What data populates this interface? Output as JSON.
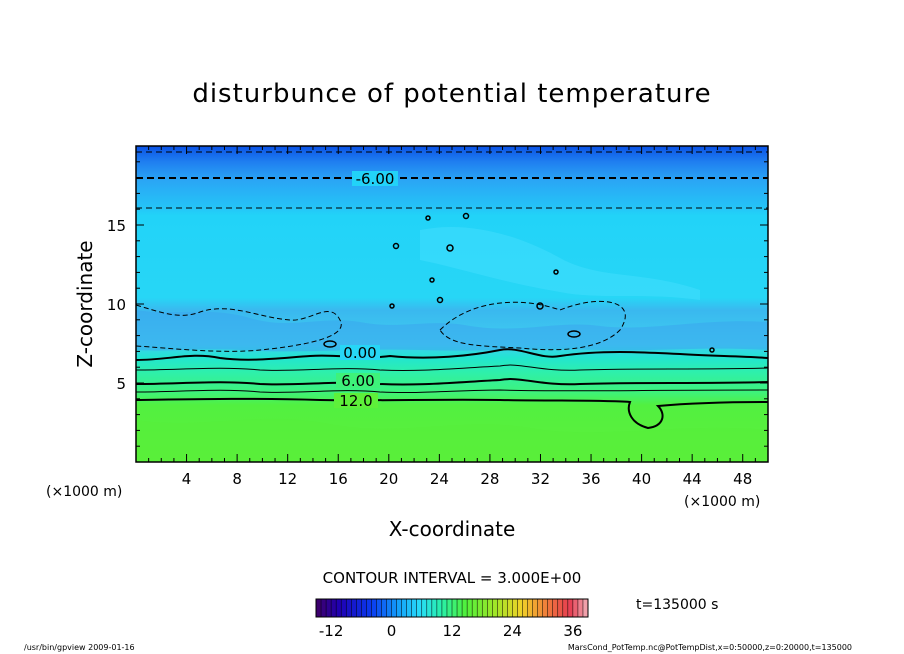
{
  "chart_data": {
    "type": "heatmap",
    "title": "disturbunce of potential temperature",
    "xlabel": "X-coordinate",
    "ylabel": "Z-coordinate",
    "x_unit_left": "(×1000 m)",
    "x_unit_right": "(×1000 m)",
    "xlim": [
      0,
      50
    ],
    "ylim": [
      0,
      20
    ],
    "x_ticks": [
      4,
      8,
      12,
      16,
      20,
      24,
      28,
      32,
      36,
      40,
      44,
      48
    ],
    "y_ticks": [
      5,
      10,
      15
    ],
    "contour_interval_label": "CONTOUR INTERVAL = 3.000E+00",
    "time_label": "t=135000 s",
    "colorbar": {
      "range": [
        -15,
        39
      ],
      "ticks": [
        -12,
        0,
        12,
        24,
        36
      ]
    },
    "contour_labels": [
      {
        "text": "-6.00",
        "x": 19,
        "z": 18.0
      },
      {
        "text": "0.00",
        "x": 18.0,
        "z": 6.8
      },
      {
        "text": "6.00",
        "x": 17.5,
        "z": 5.2
      },
      {
        "text": "12.0",
        "x": 17.5,
        "z": 3.8
      }
    ],
    "grid": false,
    "legend": "colorbar-bottom"
  },
  "footer": {
    "left": "/usr/bin/gpview   2009-01-16",
    "right": "MarsCond_PotTemp.nc@PotTempDist,x=0:50000,z=0:20000,t=135000"
  }
}
